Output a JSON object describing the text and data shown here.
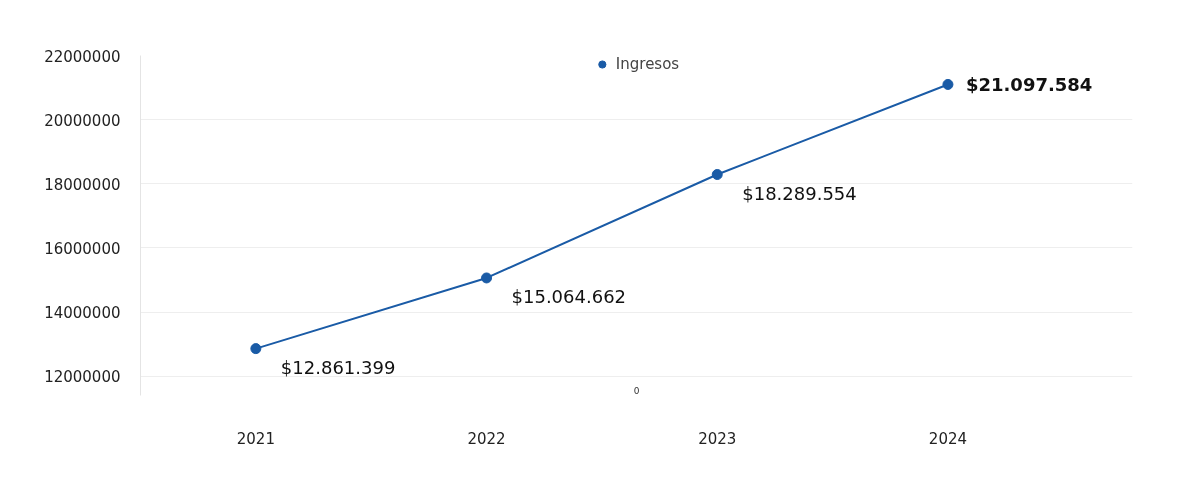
{
  "chart_data": {
    "type": "line",
    "categories": [
      "2021",
      "2022",
      "2023",
      "2024"
    ],
    "series": [
      {
        "name": "Ingresos",
        "color": "#1a5ba6",
        "values": [
          12861399,
          15064662,
          18289554,
          21097584
        ],
        "value_labels": [
          "$12.861.399",
          "$15.064.662",
          "$18.289.554",
          "$21.097.584"
        ]
      }
    ],
    "ylim": [
      11400000,
      22000000
    ],
    "yticks": [
      12000000,
      14000000,
      16000000,
      18000000,
      20000000,
      22000000
    ],
    "grid": "y",
    "legend": "top",
    "marker": "circle",
    "line_style": "solid",
    "annotations": [
      "0"
    ]
  }
}
